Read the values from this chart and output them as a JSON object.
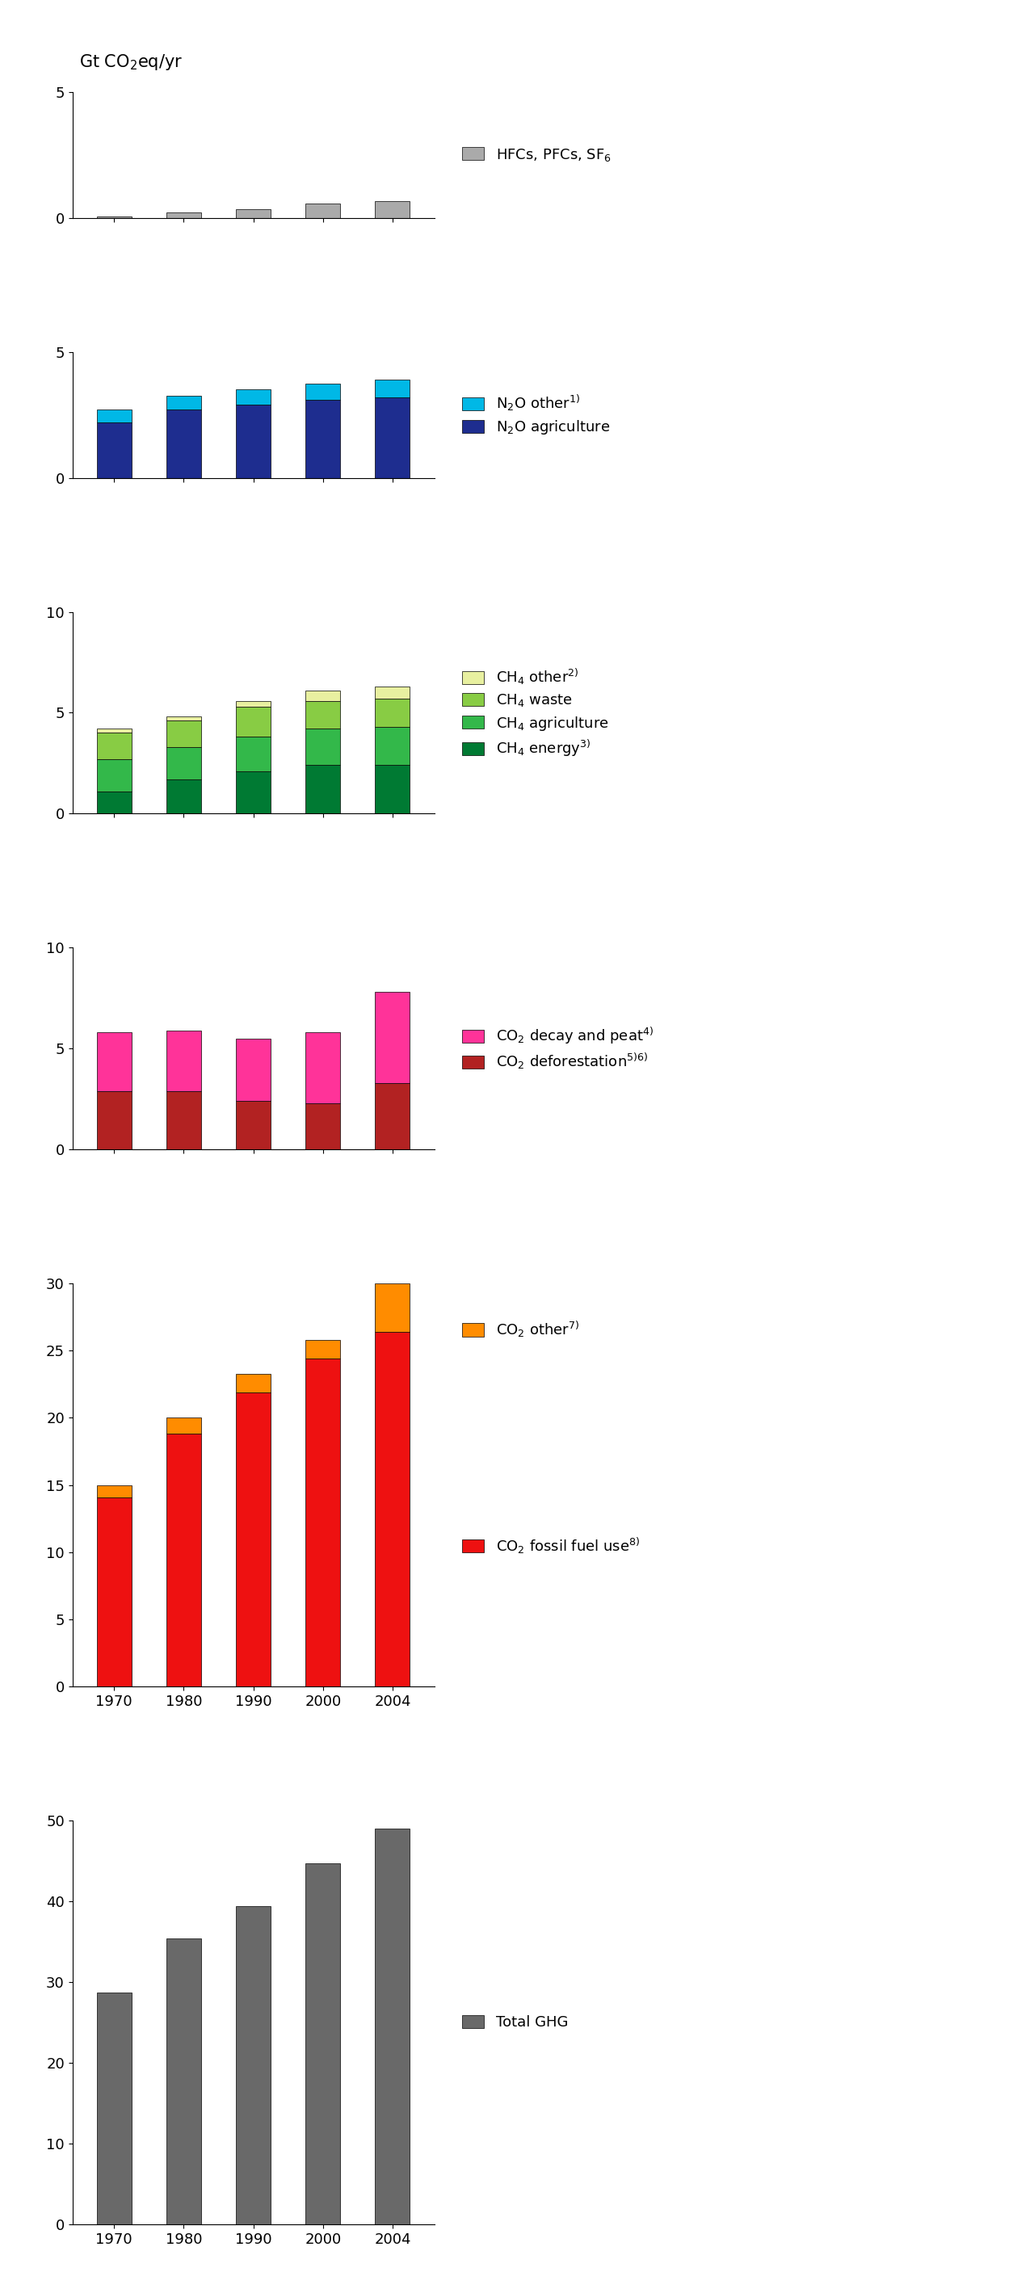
{
  "years": [
    1970,
    1980,
    1990,
    2000,
    2004
  ],
  "year_labels": [
    "1970",
    "1980",
    "1990",
    "2000",
    "2004"
  ],
  "hfc_pfc_sf6": [
    0.05,
    0.2,
    0.35,
    0.55,
    0.65
  ],
  "n2o_agriculture": [
    2.2,
    2.7,
    2.9,
    3.1,
    3.2
  ],
  "n2o_other": [
    0.5,
    0.55,
    0.6,
    0.65,
    0.7
  ],
  "ch4_energy": [
    1.1,
    1.7,
    2.1,
    2.4,
    2.4
  ],
  "ch4_agriculture": [
    1.6,
    1.6,
    1.7,
    1.8,
    1.9
  ],
  "ch4_waste": [
    1.3,
    1.3,
    1.5,
    1.4,
    1.4
  ],
  "ch4_other": [
    0.2,
    0.2,
    0.3,
    0.5,
    0.6
  ],
  "co2_deforestation": [
    2.9,
    2.9,
    2.4,
    2.3,
    3.3
  ],
  "co2_decay": [
    2.9,
    3.0,
    3.1,
    3.5,
    4.5
  ],
  "co2_fossil": [
    14.1,
    18.8,
    21.9,
    24.4,
    26.4
  ],
  "co2_other": [
    0.9,
    1.2,
    1.4,
    1.4,
    3.6
  ],
  "total_ghg": [
    28.7,
    35.4,
    39.4,
    44.7,
    49.0
  ],
  "colors": {
    "hfc_pfc_sf6": "#aaaaaa",
    "n2o_agriculture": "#1e2d8f",
    "n2o_other": "#00b8e6",
    "ch4_energy": "#007a33",
    "ch4_agriculture": "#33b84a",
    "ch4_waste": "#88cc44",
    "ch4_other": "#e8f0a0",
    "co2_deforestation": "#b22222",
    "co2_decay": "#ff3399",
    "co2_fossil": "#ee1111",
    "co2_other": "#ff8c00",
    "total_ghg": "#696969"
  },
  "legend_labels": {
    "hfc_pfc_sf6": "HFCs, PFCs, SF$_6$",
    "n2o_other": "N$_2$O other$^{1)}$",
    "n2o_agriculture": "N$_2$O agriculture",
    "ch4_other": "CH$_4$ other$^{2)}$",
    "ch4_waste": "CH$_4$ waste",
    "ch4_agriculture": "CH$_4$ agriculture",
    "ch4_energy": "CH$_4$ energy$^{3)}$",
    "co2_decay": "CO$_2$ decay and peat$^{4)}$",
    "co2_deforestation": "CO$_2$ deforestation$^{5) 6)}$",
    "co2_other": "CO$_2$ other$^{7)}$",
    "co2_fossil": "CO$_2$ fossil fuel use$^{8)}$",
    "total_ghg": "Total GHG"
  },
  "super_ylabel": "Gt CO$_2$eq/yr",
  "background_color": "#ffffff",
  "height_ratios": [
    1.0,
    1.0,
    1.6,
    1.6,
    3.2,
    3.2
  ],
  "figsize": [
    12.8,
    28.39
  ]
}
